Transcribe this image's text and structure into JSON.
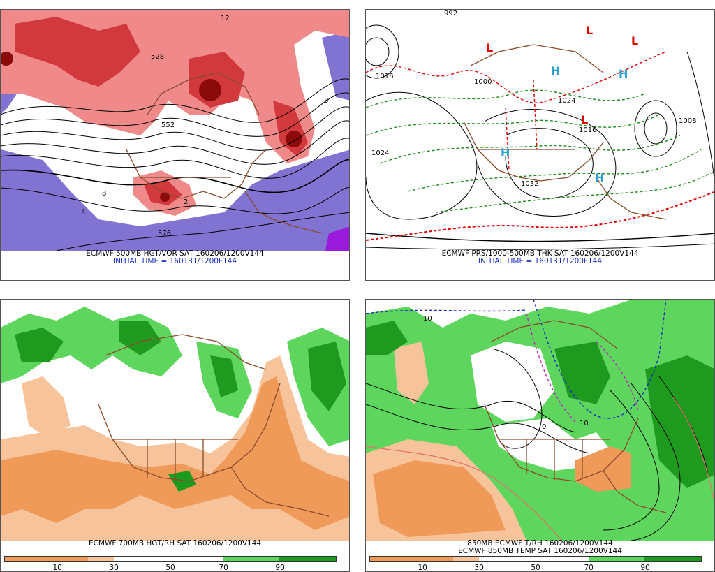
{
  "panels": {
    "p500": {
      "caption": "ECMWF 500MB HGT/VOR SAT 160206/1200V144",
      "initial": "INITIAL TIME = 160131/1200F144",
      "contour_labels": [
        "552",
        "576",
        "528",
        "8",
        "4",
        "12",
        "2",
        "8"
      ]
    },
    "pmsl": {
      "caption": "ECMWF PRS/1000-500MB THK SAT 160206/1200V144",
      "initial": "INITIAL TIME = 160131/1200F144",
      "contour_labels": [
        "1024",
        "1032",
        "1016",
        "1008",
        "1000",
        "992",
        "1024",
        "1016"
      ],
      "pressure_centers": [
        "H",
        "H",
        "H",
        "H",
        "L",
        "L",
        "L",
        "L"
      ]
    },
    "p700": {
      "caption": "ECMWF 700MB HGT/RH SAT 160206/1200V144",
      "colorbar_labels": [
        "10",
        "30",
        "50",
        "70",
        "90"
      ]
    },
    "p850": {
      "caption1": "850MB ECMWF T/RH 160206/1200V144",
      "caption2": "ECMWF 850MB TEMP SAT 160206/1200V144",
      "colorbar_labels": [
        "10",
        "30",
        "50",
        "70",
        "90"
      ],
      "contour_labels": [
        "0",
        "10",
        "10"
      ]
    }
  },
  "colors": {
    "vorticity_dark": "#8b0a0a",
    "vorticity_mid": "#d2393c",
    "vorticity_light": "#f08a8a",
    "vorticity_neg": "#8073d2",
    "rh_dry_dark": "#f09a5a",
    "rh_dry_light": "#f6c39a",
    "rh_moist_light": "#5ed65e",
    "rh_moist_dark": "#1e9a1e",
    "borders": "#8b4a2b",
    "thickness_red": "#e00000",
    "thickness_green": "#1a8a1a",
    "high_label": "#2aa0d0",
    "low_label": "#e00000",
    "temp_blue": "#1a2fbf",
    "temp_magenta": "#c020c0"
  }
}
